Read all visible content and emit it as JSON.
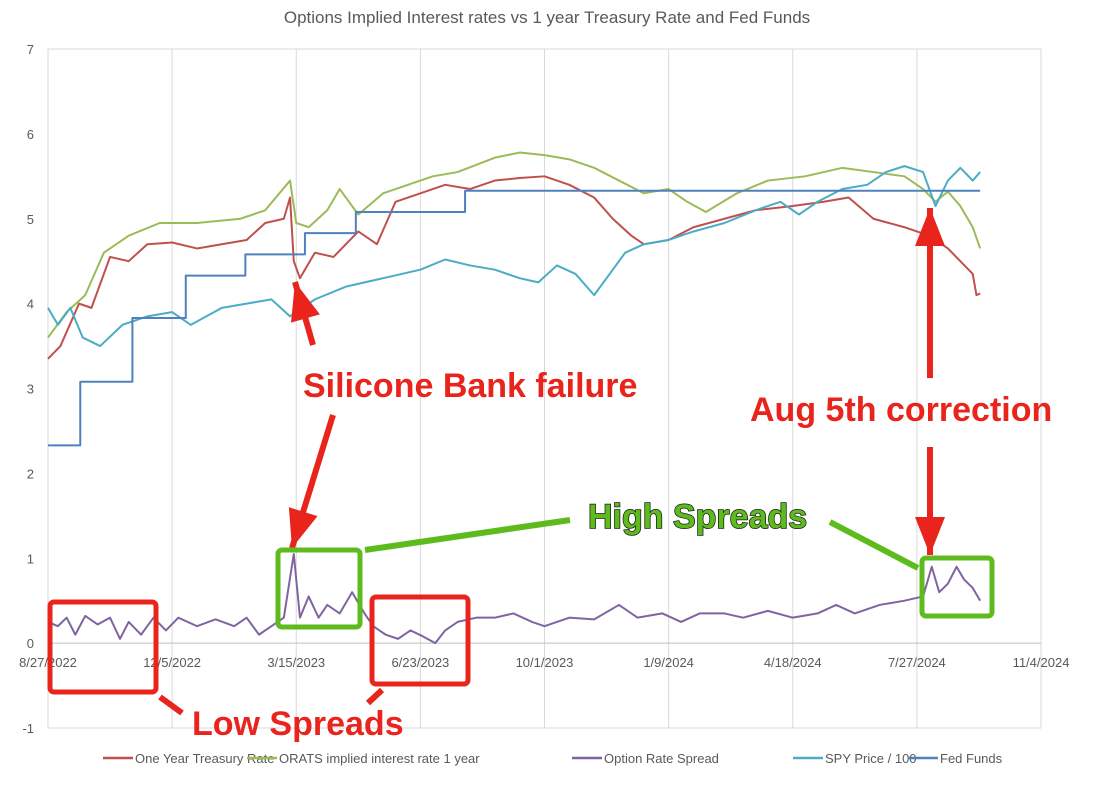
{
  "chart_data": {
    "type": "line",
    "title": "Options Implied Interest rates vs 1 year Treasury Rate and Fed Funds",
    "x_unit": "days since 8/27/2022",
    "xlim": [
      0,
      800
    ],
    "ylim": [
      -1,
      7
    ],
    "yticks": [
      -1,
      0,
      1,
      2,
      3,
      4,
      5,
      6,
      7
    ],
    "xticks": [
      {
        "day": 0,
        "label": "8/27/2022"
      },
      {
        "day": 100,
        "label": "12/5/2022"
      },
      {
        "day": 200,
        "label": "3/15/2023"
      },
      {
        "day": 300,
        "label": "6/23/2023"
      },
      {
        "day": 400,
        "label": "10/1/2023"
      },
      {
        "day": 500,
        "label": "1/9/2024"
      },
      {
        "day": 600,
        "label": "4/18/2024"
      },
      {
        "day": 700,
        "label": "7/27/2024"
      },
      {
        "day": 800,
        "label": "11/4/2024"
      }
    ],
    "grid": "vertical",
    "legend_position": "bottom",
    "series": [
      {
        "name": "One Year Treasury Rate",
        "color": "#c0504d",
        "points": [
          [
            0,
            3.35
          ],
          [
            10,
            3.5
          ],
          [
            25,
            4.0
          ],
          [
            35,
            3.95
          ],
          [
            50,
            4.55
          ],
          [
            65,
            4.5
          ],
          [
            80,
            4.7
          ],
          [
            100,
            4.72
          ],
          [
            120,
            4.65
          ],
          [
            140,
            4.7
          ],
          [
            160,
            4.75
          ],
          [
            175,
            4.95
          ],
          [
            190,
            5.0
          ],
          [
            195,
            5.25
          ],
          [
            198,
            4.5
          ],
          [
            203,
            4.3
          ],
          [
            215,
            4.6
          ],
          [
            230,
            4.55
          ],
          [
            250,
            4.85
          ],
          [
            265,
            4.7
          ],
          [
            280,
            5.2
          ],
          [
            300,
            5.3
          ],
          [
            320,
            5.4
          ],
          [
            340,
            5.35
          ],
          [
            360,
            5.45
          ],
          [
            380,
            5.48
          ],
          [
            400,
            5.5
          ],
          [
            420,
            5.4
          ],
          [
            440,
            5.25
          ],
          [
            455,
            5.0
          ],
          [
            470,
            4.8
          ],
          [
            480,
            4.7
          ],
          [
            500,
            4.75
          ],
          [
            520,
            4.9
          ],
          [
            545,
            5.0
          ],
          [
            570,
            5.1
          ],
          [
            600,
            5.15
          ],
          [
            625,
            5.2
          ],
          [
            645,
            5.25
          ],
          [
            665,
            5.0
          ],
          [
            690,
            4.9
          ],
          [
            710,
            4.8
          ],
          [
            725,
            4.65
          ],
          [
            735,
            4.5
          ],
          [
            745,
            4.35
          ],
          [
            748,
            4.1
          ],
          [
            751,
            4.12
          ]
        ]
      },
      {
        "name": "ORATS implied interest rate 1 year",
        "color": "#9bbb59",
        "points": [
          [
            0,
            3.6
          ],
          [
            15,
            3.9
          ],
          [
            30,
            4.1
          ],
          [
            45,
            4.6
          ],
          [
            65,
            4.8
          ],
          [
            90,
            4.95
          ],
          [
            120,
            4.95
          ],
          [
            155,
            5.0
          ],
          [
            175,
            5.1
          ],
          [
            195,
            5.45
          ],
          [
            200,
            4.95
          ],
          [
            210,
            4.9
          ],
          [
            225,
            5.1
          ],
          [
            235,
            5.35
          ],
          [
            250,
            5.05
          ],
          [
            270,
            5.3
          ],
          [
            290,
            5.4
          ],
          [
            310,
            5.5
          ],
          [
            330,
            5.55
          ],
          [
            360,
            5.72
          ],
          [
            380,
            5.78
          ],
          [
            400,
            5.75
          ],
          [
            420,
            5.7
          ],
          [
            440,
            5.6
          ],
          [
            460,
            5.45
          ],
          [
            480,
            5.3
          ],
          [
            500,
            5.35
          ],
          [
            515,
            5.2
          ],
          [
            530,
            5.08
          ],
          [
            555,
            5.3
          ],
          [
            580,
            5.45
          ],
          [
            610,
            5.5
          ],
          [
            640,
            5.6
          ],
          [
            665,
            5.55
          ],
          [
            690,
            5.5
          ],
          [
            705,
            5.35
          ],
          [
            715,
            5.2
          ],
          [
            725,
            5.32
          ],
          [
            735,
            5.15
          ],
          [
            745,
            4.9
          ],
          [
            751,
            4.65
          ]
        ]
      },
      {
        "name": "Option Rate Spread",
        "color": "#8064a2",
        "points": [
          [
            0,
            0.25
          ],
          [
            8,
            0.2
          ],
          [
            15,
            0.3
          ],
          [
            22,
            0.1
          ],
          [
            30,
            0.32
          ],
          [
            40,
            0.22
          ],
          [
            50,
            0.3
          ],
          [
            58,
            0.05
          ],
          [
            65,
            0.25
          ],
          [
            75,
            0.1
          ],
          [
            85,
            0.3
          ],
          [
            95,
            0.15
          ],
          [
            105,
            0.3
          ],
          [
            120,
            0.2
          ],
          [
            135,
            0.28
          ],
          [
            150,
            0.2
          ],
          [
            160,
            0.3
          ],
          [
            170,
            0.1
          ],
          [
            180,
            0.2
          ],
          [
            190,
            0.3
          ],
          [
            198,
            1.05
          ],
          [
            203,
            0.3
          ],
          [
            210,
            0.55
          ],
          [
            218,
            0.3
          ],
          [
            225,
            0.45
          ],
          [
            235,
            0.35
          ],
          [
            245,
            0.6
          ],
          [
            255,
            0.35
          ],
          [
            262,
            0.2
          ],
          [
            272,
            0.1
          ],
          [
            282,
            0.05
          ],
          [
            292,
            0.15
          ],
          [
            302,
            0.08
          ],
          [
            312,
            0.0
          ],
          [
            320,
            0.15
          ],
          [
            330,
            0.25
          ],
          [
            345,
            0.3
          ],
          [
            360,
            0.3
          ],
          [
            375,
            0.35
          ],
          [
            390,
            0.25
          ],
          [
            400,
            0.2
          ],
          [
            420,
            0.3
          ],
          [
            440,
            0.28
          ],
          [
            460,
            0.45
          ],
          [
            475,
            0.3
          ],
          [
            495,
            0.35
          ],
          [
            510,
            0.25
          ],
          [
            525,
            0.35
          ],
          [
            545,
            0.35
          ],
          [
            560,
            0.3
          ],
          [
            580,
            0.38
          ],
          [
            600,
            0.3
          ],
          [
            620,
            0.35
          ],
          [
            635,
            0.45
          ],
          [
            650,
            0.35
          ],
          [
            670,
            0.45
          ],
          [
            690,
            0.5
          ],
          [
            705,
            0.55
          ],
          [
            712,
            0.9
          ],
          [
            718,
            0.6
          ],
          [
            725,
            0.7
          ],
          [
            732,
            0.9
          ],
          [
            738,
            0.75
          ],
          [
            745,
            0.65
          ],
          [
            751,
            0.5
          ]
        ]
      },
      {
        "name": "SPY Price / 100",
        "color": "#4bacc6",
        "points": [
          [
            0,
            3.95
          ],
          [
            8,
            3.75
          ],
          [
            18,
            3.95
          ],
          [
            28,
            3.6
          ],
          [
            42,
            3.5
          ],
          [
            60,
            3.75
          ],
          [
            80,
            3.85
          ],
          [
            100,
            3.9
          ],
          [
            115,
            3.75
          ],
          [
            140,
            3.95
          ],
          [
            160,
            4.0
          ],
          [
            180,
            4.05
          ],
          [
            195,
            3.85
          ],
          [
            215,
            4.05
          ],
          [
            240,
            4.2
          ],
          [
            270,
            4.3
          ],
          [
            300,
            4.4
          ],
          [
            320,
            4.52
          ],
          [
            340,
            4.45
          ],
          [
            360,
            4.4
          ],
          [
            380,
            4.3
          ],
          [
            395,
            4.25
          ],
          [
            410,
            4.45
          ],
          [
            425,
            4.35
          ],
          [
            440,
            4.1
          ],
          [
            450,
            4.3
          ],
          [
            465,
            4.6
          ],
          [
            480,
            4.7
          ],
          [
            500,
            4.75
          ],
          [
            520,
            4.85
          ],
          [
            545,
            4.95
          ],
          [
            570,
            5.1
          ],
          [
            590,
            5.2
          ],
          [
            605,
            5.05
          ],
          [
            620,
            5.2
          ],
          [
            640,
            5.35
          ],
          [
            660,
            5.4
          ],
          [
            675,
            5.55
          ],
          [
            690,
            5.62
          ],
          [
            705,
            5.55
          ],
          [
            715,
            5.15
          ],
          [
            725,
            5.45
          ],
          [
            735,
            5.6
          ],
          [
            745,
            5.45
          ],
          [
            751,
            5.55
          ]
        ]
      },
      {
        "name": "Fed Funds",
        "color": "#4f81bd",
        "step": true,
        "points": [
          [
            0,
            2.33
          ],
          [
            26,
            3.08
          ],
          [
            68,
            3.83
          ],
          [
            111,
            4.33
          ],
          [
            159,
            4.58
          ],
          [
            207,
            4.83
          ],
          [
            248,
            5.08
          ],
          [
            336,
            5.33
          ],
          [
            751,
            5.33
          ]
        ]
      }
    ],
    "annotations": {
      "silicon_bank": "Silicone Bank failure",
      "aug5": "Aug 5th correction",
      "high_spreads": "High Spreads",
      "low_spreads": "Low Spreads"
    }
  }
}
